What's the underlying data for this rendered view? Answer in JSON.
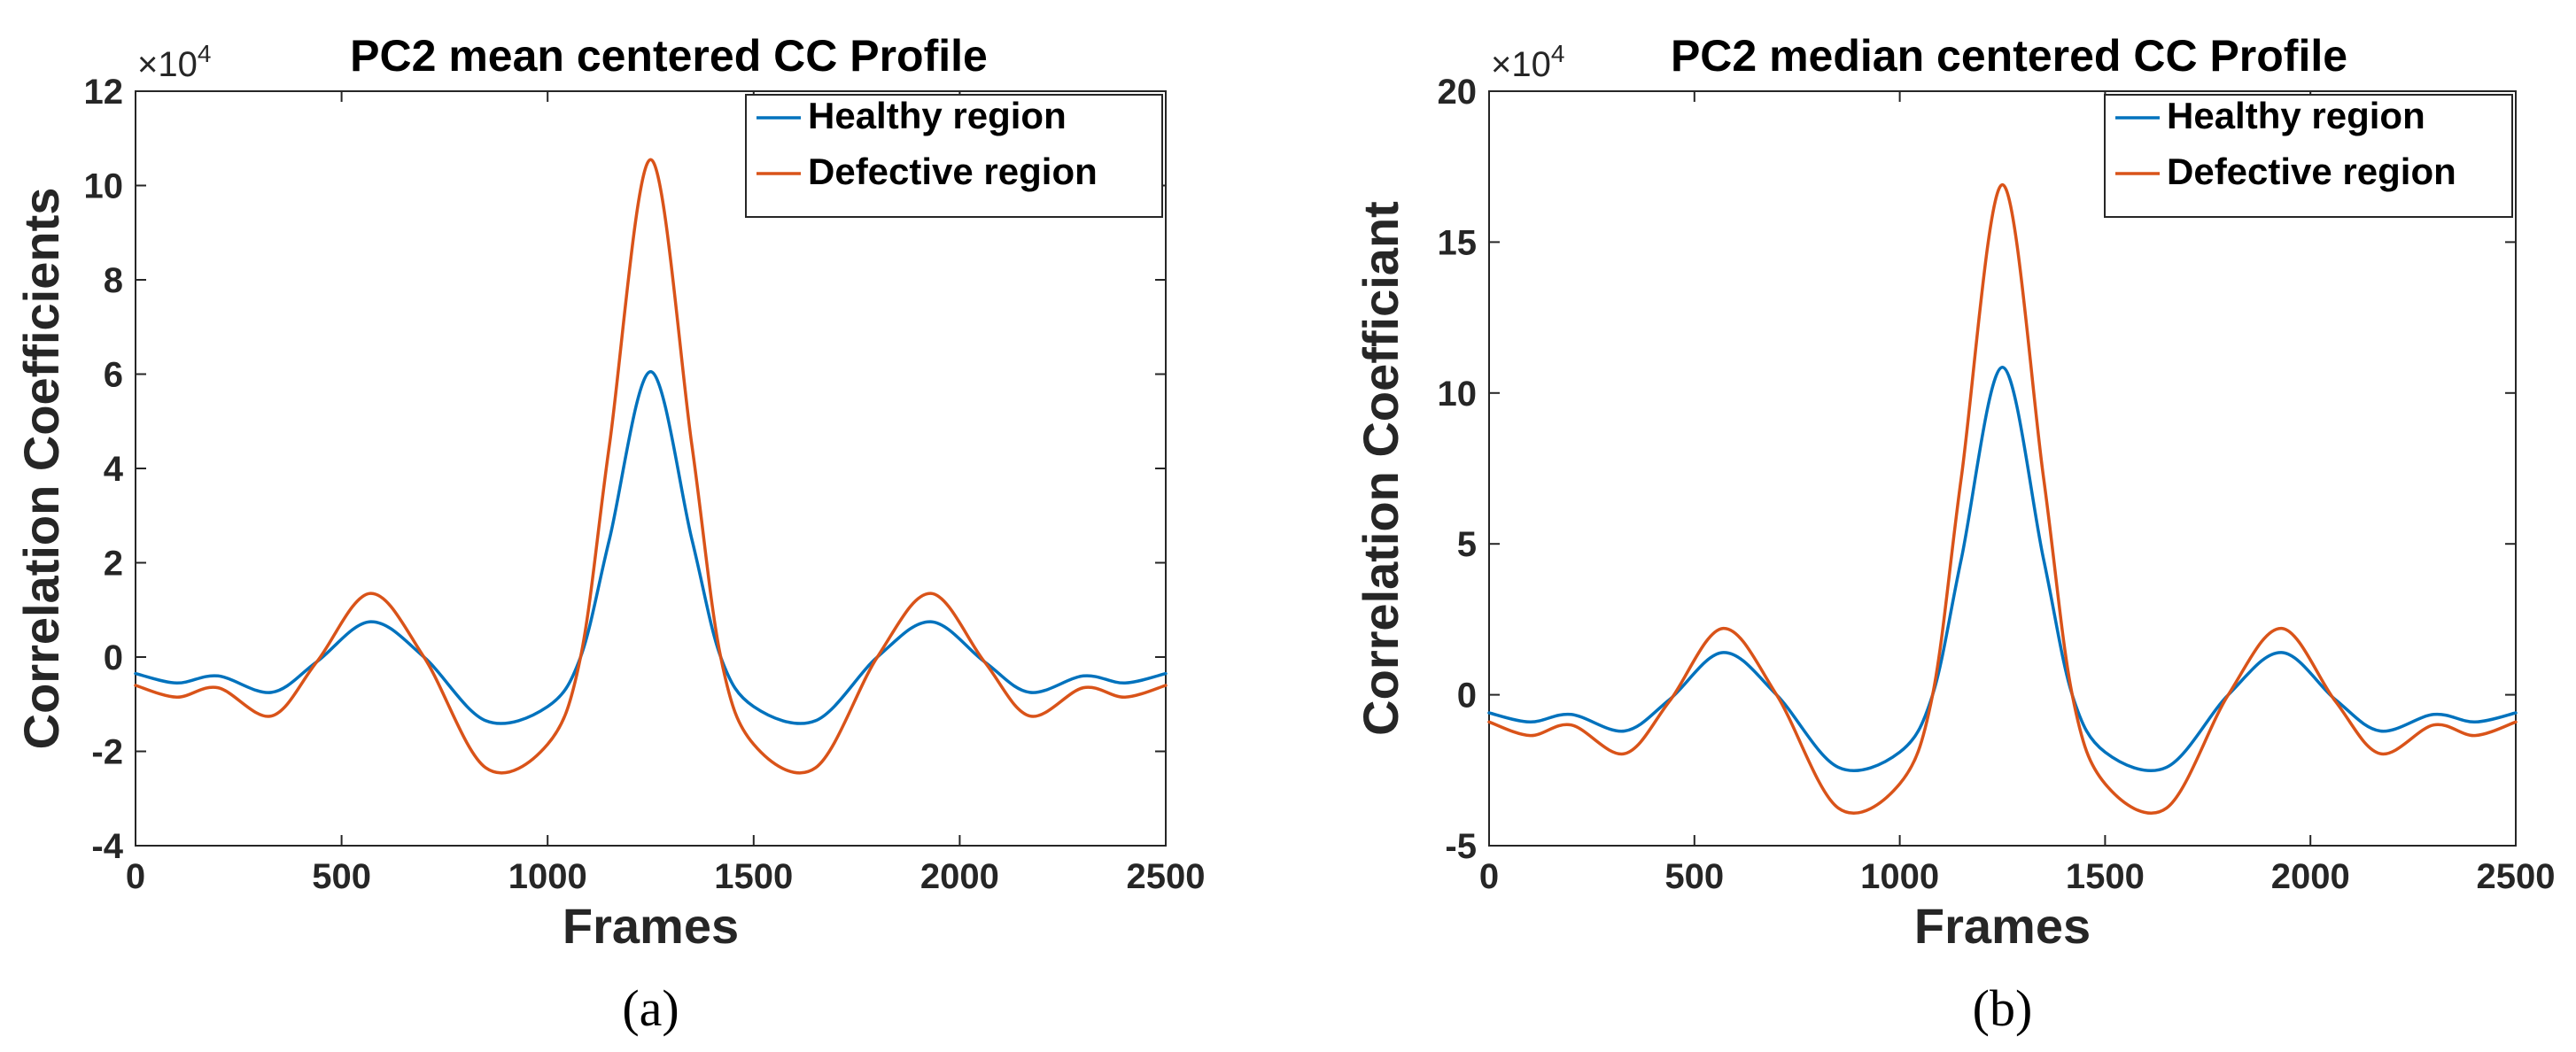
{
  "chart_data": [
    {
      "type": "line",
      "title": "PC2 mean centered CC Profile",
      "xlabel": "Frames",
      "ylabel": "Correlation Coefficients",
      "y_exponent": "4",
      "xlim": [
        0,
        2500
      ],
      "ylim": [
        -4,
        12
      ],
      "xticks": [
        0,
        500,
        1000,
        1500,
        2000,
        2500
      ],
      "yticks": [
        -4,
        -2,
        0,
        2,
        4,
        6,
        8,
        10,
        12
      ],
      "legend_position": "top-right",
      "grid": false,
      "panel_label": "(a)",
      "x": [
        0,
        100,
        200,
        330,
        440,
        570,
        700,
        850,
        1000,
        1080,
        1150,
        1250,
        1350,
        1420,
        1500,
        1650,
        1800,
        1930,
        2060,
        2170,
        2300,
        2400,
        2500
      ],
      "series": [
        {
          "name": "Healthy region",
          "color": "#0072BD",
          "values": [
            -0.35,
            -0.55,
            -0.4,
            -0.75,
            -0.1,
            0.75,
            0.0,
            -1.35,
            -1.05,
            0.0,
            2.5,
            6.05,
            2.5,
            0.0,
            -1.05,
            -1.35,
            0.0,
            0.75,
            -0.1,
            -0.75,
            -0.4,
            -0.55,
            -0.35
          ]
        },
        {
          "name": "Defective region",
          "color": "#D95319",
          "values": [
            -0.6,
            -0.85,
            -0.65,
            -1.25,
            -0.1,
            1.35,
            0.0,
            -2.35,
            -1.85,
            0.0,
            4.5,
            10.55,
            4.5,
            0.0,
            -1.85,
            -2.35,
            0.0,
            1.35,
            -0.1,
            -1.25,
            -0.65,
            -0.85,
            -0.6
          ]
        }
      ]
    },
    {
      "type": "line",
      "title": "PC2 median centered CC Profile",
      "xlabel": "Frames",
      "ylabel": "Correlation Coefficiant",
      "y_exponent": "4",
      "xlim": [
        0,
        2500
      ],
      "ylim": [
        -5,
        20
      ],
      "xticks": [
        0,
        500,
        1000,
        1500,
        2000,
        2500
      ],
      "yticks": [
        -5,
        0,
        5,
        10,
        15,
        20
      ],
      "legend_position": "top-right",
      "grid": false,
      "panel_label": "(b)",
      "x": [
        0,
        100,
        200,
        330,
        440,
        570,
        700,
        850,
        1000,
        1080,
        1150,
        1250,
        1350,
        1420,
        1500,
        1650,
        1800,
        1930,
        2060,
        2170,
        2300,
        2400,
        2500
      ],
      "series": [
        {
          "name": "Healthy region",
          "color": "#0072BD",
          "values": [
            -0.6,
            -0.9,
            -0.65,
            -1.2,
            -0.15,
            1.4,
            0.0,
            -2.4,
            -1.9,
            0.0,
            4.5,
            10.85,
            4.5,
            0.0,
            -1.9,
            -2.4,
            0.0,
            1.4,
            -0.15,
            -1.2,
            -0.65,
            -0.9,
            -0.6
          ]
        },
        {
          "name": "Defective region",
          "color": "#D95319",
          "values": [
            -0.9,
            -1.35,
            -1.0,
            -1.95,
            -0.2,
            2.2,
            0.0,
            -3.75,
            -2.95,
            0.0,
            7.2,
            16.9,
            7.2,
            0.0,
            -2.95,
            -3.75,
            0.0,
            2.2,
            -0.2,
            -1.95,
            -1.0,
            -1.35,
            -0.9
          ]
        }
      ]
    }
  ]
}
